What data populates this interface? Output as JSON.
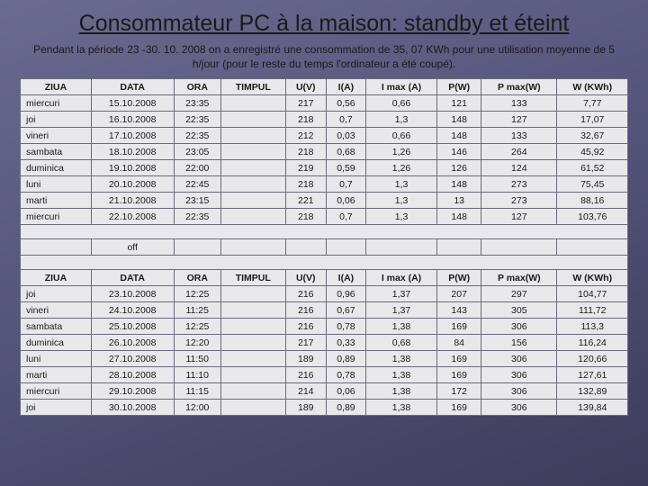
{
  "title": "Consommateur PC à la maison: standby et éteint",
  "subtitle": "Pendant la période 23 -30. 10. 2008 on a enregistré une consommation de 35, 07 KWh pour une utilisation moyenne de 5 h/jour (pour le reste du temps l'ordinateur a été coupé).",
  "table": {
    "headers": [
      "ZIUA",
      "DATA",
      "ORA",
      "TIMPUL",
      "U(V)",
      "I(A)",
      "I max (A)",
      "P(W)",
      "P max(W)",
      "W (KWh)"
    ],
    "section1": [
      [
        "miercuri",
        "15.10.2008",
        "23:35",
        "",
        "217",
        "0,56",
        "0,66",
        "121",
        "133",
        "7,77"
      ],
      [
        "joi",
        "16.10.2008",
        "22:35",
        "",
        "218",
        "0,7",
        "1,3",
        "148",
        "127",
        "17,07"
      ],
      [
        "vineri",
        "17.10.2008",
        "22:35",
        "",
        "212",
        "0,03",
        "0,66",
        "148",
        "133",
        "32,67"
      ],
      [
        "sambata",
        "18.10.2008",
        "23:05",
        "",
        "218",
        "0,68",
        "1,26",
        "146",
        "264",
        "45,92"
      ],
      [
        "duminica",
        "19.10.2008",
        "22:00",
        "",
        "219",
        "0,59",
        "1,26",
        "126",
        "124",
        "61,52"
      ],
      [
        "luni",
        "20.10.2008",
        "22:45",
        "",
        "218",
        "0,7",
        "1,3",
        "148",
        "273",
        "75,45"
      ],
      [
        "marti",
        "21.10.2008",
        "23:15",
        "",
        "221",
        "0,06",
        "1,3",
        "13",
        "273",
        "88,16"
      ],
      [
        "miercuri",
        "22.10.2008",
        "22:35",
        "",
        "218",
        "0,7",
        "1,3",
        "148",
        "127",
        "103,76"
      ]
    ],
    "off_label": "off",
    "section2": [
      [
        "joi",
        "23.10.2008",
        "12:25",
        "",
        "216",
        "0,96",
        "1,37",
        "207",
        "297",
        "104,77"
      ],
      [
        "vineri",
        "24.10.2008",
        "11:25",
        "",
        "216",
        "0,67",
        "1,37",
        "143",
        "305",
        "111,72"
      ],
      [
        "sambata",
        "25.10.2008",
        "12:25",
        "",
        "216",
        "0,78",
        "1,38",
        "169",
        "306",
        "113,3"
      ],
      [
        "duminica",
        "26.10.2008",
        "12:20",
        "",
        "217",
        "0,33",
        "0,68",
        "84",
        "156",
        "116,24"
      ],
      [
        "luni",
        "27.10.2008",
        "11:50",
        "",
        "189",
        "0,89",
        "1,38",
        "169",
        "306",
        "120,66"
      ],
      [
        "marti",
        "28.10.2008",
        "11:10",
        "",
        "216",
        "0,78",
        "1,38",
        "169",
        "306",
        "127,61"
      ],
      [
        "miercuri",
        "29.10.2008",
        "11:15",
        "",
        "214",
        "0,06",
        "1,38",
        "172",
        "306",
        "132,89"
      ],
      [
        "joi",
        "30.10.2008",
        "12:00",
        "",
        "189",
        "0,89",
        "1,38",
        "169",
        "306",
        "139,84"
      ]
    ]
  },
  "colors": {
    "cell_bg": "#e8e8ec",
    "border": "#6a6a7a",
    "text": "#1a1a1a"
  }
}
